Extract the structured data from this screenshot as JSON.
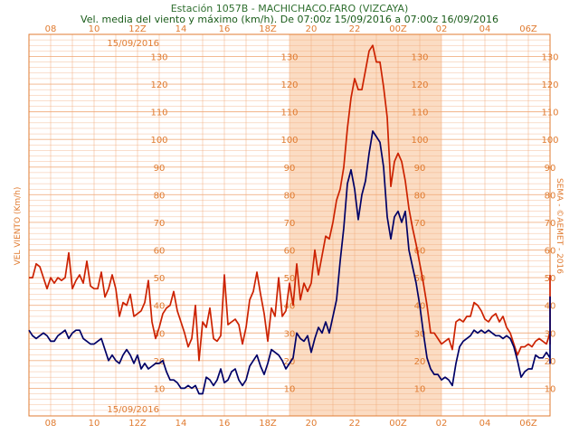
{
  "chart_data": {
    "type": "line",
    "title": "Estación 1057B - MACHICHACO.FARO (VIZCAYA)",
    "subtitle": "Vel. media del viento y máximo (km/h). De 07:00z 15/09/2016 a 07:00z 16/09/2016",
    "ylabel": "VEL VIENTO (Km/h)",
    "credit": "SEMA - ©AEMET - 2016",
    "date_top": "15/09/2016",
    "date_bottom": "15/09/2016",
    "x_ticks": [
      "08",
      "10",
      "12Z",
      "14",
      "16",
      "18Z",
      "20",
      "22",
      "00Z",
      "02",
      "04",
      "06Z"
    ],
    "y_ticks": [
      10,
      20,
      30,
      40,
      50,
      60,
      70,
      80,
      90,
      100,
      110,
      120,
      130
    ],
    "ylim": [
      0,
      138
    ],
    "xlim_hours": [
      7,
      31
    ],
    "night_span_hours": [
      19,
      26
    ],
    "x_step_minutes": 10,
    "colors": {
      "max": "#cc2200",
      "mean": "#000066",
      "grid": "#f0a878",
      "shade": "#fbdcc3"
    },
    "series": [
      {
        "key": "max",
        "values": [
          50,
          50,
          55,
          54,
          50,
          46,
          50,
          48,
          50,
          49,
          50,
          59,
          46,
          49,
          51,
          48,
          56,
          47,
          46,
          46,
          52,
          43,
          46,
          51,
          46,
          36,
          41,
          40,
          44,
          36,
          37,
          38,
          41,
          49,
          34,
          28,
          32,
          37,
          39,
          40,
          45,
          38,
          34,
          30,
          25,
          28,
          40,
          20,
          34,
          32,
          39,
          28,
          27,
          29,
          51,
          33,
          34,
          35,
          33,
          26,
          32,
          42,
          45,
          52,
          44,
          37,
          27,
          39,
          36,
          50,
          36,
          38,
          48,
          40,
          55,
          42,
          48,
          45,
          48,
          60,
          51,
          58,
          65,
          64,
          70,
          78,
          82,
          90,
          104,
          115,
          122,
          118,
          118,
          125,
          132,
          134,
          128,
          128,
          119,
          108,
          83,
          92,
          95,
          92,
          85,
          75,
          68,
          62,
          55,
          48,
          40,
          30,
          30,
          28,
          26,
          27,
          28,
          24,
          34,
          35,
          34,
          36,
          36,
          41,
          40,
          38,
          35,
          34,
          36,
          37,
          34,
          36,
          32,
          30,
          26,
          22,
          25,
          25,
          26,
          25,
          27,
          28,
          27,
          26,
          30,
          26,
          27,
          28,
          26,
          27,
          40,
          49,
          48,
          48,
          45,
          51
        ]
      },
      {
        "key": "mean",
        "values": [
          31,
          29,
          28,
          29,
          30,
          29,
          27,
          27,
          29,
          30,
          31,
          28,
          30,
          31,
          31,
          28,
          27,
          26,
          26,
          27,
          28,
          24,
          20,
          22,
          20,
          19,
          22,
          24,
          22,
          19,
          22,
          17,
          19,
          17,
          18,
          19,
          19,
          20,
          16,
          13,
          13,
          12,
          10,
          10,
          11,
          10,
          11,
          8,
          8,
          14,
          13,
          11,
          13,
          17,
          12,
          13,
          16,
          17,
          13,
          11,
          13,
          18,
          20,
          22,
          18,
          15,
          19,
          24,
          23,
          22,
          20,
          17,
          19,
          21,
          30,
          28,
          27,
          29,
          23,
          28,
          32,
          30,
          34,
          30,
          36,
          42,
          56,
          68,
          84,
          89,
          82,
          71,
          80,
          85,
          95,
          103,
          101,
          99,
          90,
          72,
          64,
          72,
          74,
          70,
          74,
          60,
          54,
          48,
          40,
          30,
          21,
          17,
          15,
          15,
          13,
          14,
          13,
          11,
          19,
          25,
          27,
          28,
          29,
          31,
          30,
          31,
          30,
          31,
          30,
          29,
          29,
          28,
          29,
          28,
          25,
          20,
          14,
          16,
          17,
          17,
          22,
          21,
          21,
          23,
          21,
          20,
          21,
          20,
          19,
          21,
          25,
          38,
          43,
          41,
          37,
          40
        ]
      }
    ]
  }
}
